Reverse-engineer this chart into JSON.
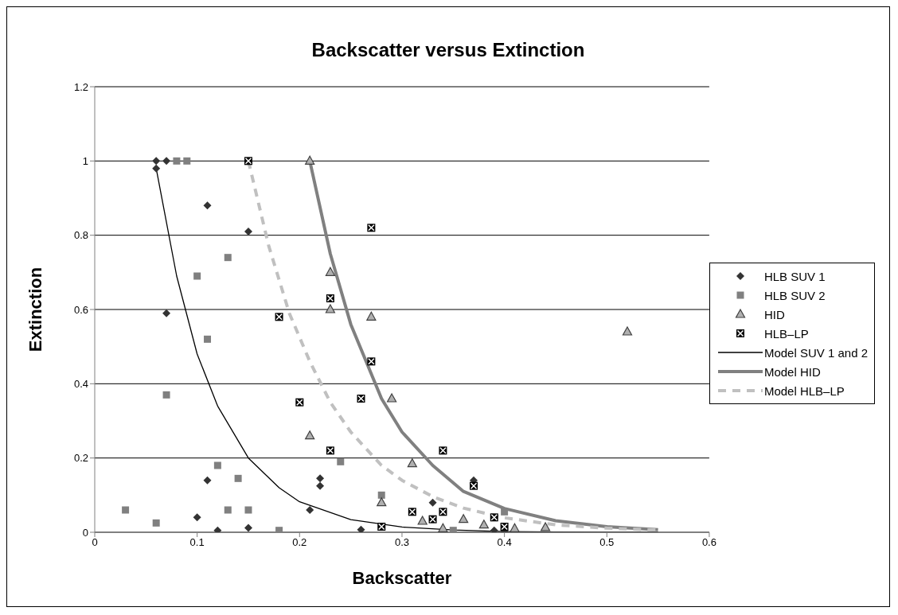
{
  "chart_data": {
    "type": "scatter",
    "title": "Backscatter versus Extinction",
    "xlabel": "Backscatter",
    "ylabel": "Extinction",
    "xlim": [
      0,
      0.6
    ],
    "xticks": [
      0,
      0.1,
      0.2,
      0.3,
      0.4,
      0.5,
      0.6
    ],
    "ylim": [
      0,
      1.2
    ],
    "yticks": [
      0,
      0.2,
      0.4,
      0.6,
      0.8,
      1,
      1.2
    ],
    "grid": "y",
    "legend": "right",
    "series": [
      {
        "name": "HLB SUV 1",
        "color": "#333333",
        "marker": "diamond",
        "x": [
          0.06,
          0.07,
          0.06,
          0.11,
          0.15,
          0.07,
          0.11,
          0.1,
          0.12,
          0.15,
          0.22,
          0.22,
          0.21,
          0.26,
          0.33,
          0.37,
          0.39,
          0.4
        ],
        "values": [
          1,
          1,
          0.98,
          0.88,
          0.81,
          0.59,
          0.14,
          0.04,
          0.005,
          0.012,
          0.145,
          0.125,
          0.06,
          0.007,
          0.08,
          0.14,
          0.005,
          0.002
        ]
      },
      {
        "name": "HLB SUV 2",
        "color": "#808080",
        "marker": "square",
        "x": [
          0.08,
          0.09,
          0.13,
          0.1,
          0.11,
          0.07,
          0.12,
          0.14,
          0.03,
          0.06,
          0.13,
          0.15,
          0.18,
          0.24,
          0.28,
          0.35,
          0.4
        ],
        "values": [
          1,
          1,
          0.74,
          0.69,
          0.52,
          0.37,
          0.18,
          0.145,
          0.06,
          0.025,
          0.06,
          0.06,
          0.005,
          0.19,
          0.1,
          0.005,
          0.055
        ]
      },
      {
        "name": "HID",
        "color": "#b0b0b0",
        "marker": "triangle",
        "x": [
          0.21,
          0.23,
          0.23,
          0.27,
          0.29,
          0.21,
          0.31,
          0.28,
          0.32,
          0.34,
          0.36,
          0.38,
          0.41,
          0.44,
          0.52
        ],
        "values": [
          1,
          0.7,
          0.6,
          0.58,
          0.36,
          0.26,
          0.185,
          0.08,
          0.03,
          0.01,
          0.035,
          0.02,
          0.01,
          0.013,
          0.54
        ]
      },
      {
        "name": "HLB–LP",
        "color": "#000000",
        "x": [
          0.15,
          0.27,
          0.23,
          0.18,
          0.27,
          0.26,
          0.2,
          0.23,
          0.34,
          0.37,
          0.31,
          0.33,
          0.34,
          0.39,
          0.28,
          0.4
        ],
        "values": [
          1,
          0.82,
          0.63,
          0.58,
          0.46,
          0.36,
          0.35,
          0.22,
          0.22,
          0.125,
          0.055,
          0.035,
          0.055,
          0.04,
          0.015,
          0.015
        ]
      },
      {
        "name": "Model SUV 1 and 2",
        "type": "line",
        "color": "#000000",
        "marker": "none",
        "line_style": "solid",
        "x": [
          0.06,
          0.08,
          0.1,
          0.12,
          0.15,
          0.18,
          0.2,
          0.25,
          0.3,
          0.35,
          0.4,
          0.45,
          0.5,
          0.55
        ],
        "values": [
          0.98,
          0.69,
          0.48,
          0.34,
          0.2,
          0.12,
          0.082,
          0.034,
          0.014,
          0.006,
          0.002,
          0.001,
          0,
          0
        ]
      },
      {
        "name": "Model HID",
        "type": "line",
        "color": "#808080",
        "marker": "none",
        "line_style": "solid",
        "x": [
          0.21,
          0.23,
          0.25,
          0.28,
          0.3,
          0.33,
          0.36,
          0.4,
          0.45,
          0.5,
          0.55
        ],
        "values": [
          1,
          0.75,
          0.56,
          0.36,
          0.27,
          0.18,
          0.11,
          0.064,
          0.031,
          0.015,
          0.007
        ]
      },
      {
        "name": "Model HLB–LP",
        "type": "line",
        "color": "#c0c0c0",
        "marker": "none",
        "line_style": "dashed",
        "x": [
          0.15,
          0.17,
          0.19,
          0.21,
          0.23,
          0.25,
          0.28,
          0.3,
          0.33,
          0.36,
          0.4,
          0.45,
          0.5,
          0.55
        ],
        "values": [
          1,
          0.77,
          0.59,
          0.46,
          0.35,
          0.27,
          0.18,
          0.14,
          0.096,
          0.065,
          0.039,
          0.02,
          0.011,
          0.006
        ]
      }
    ]
  }
}
